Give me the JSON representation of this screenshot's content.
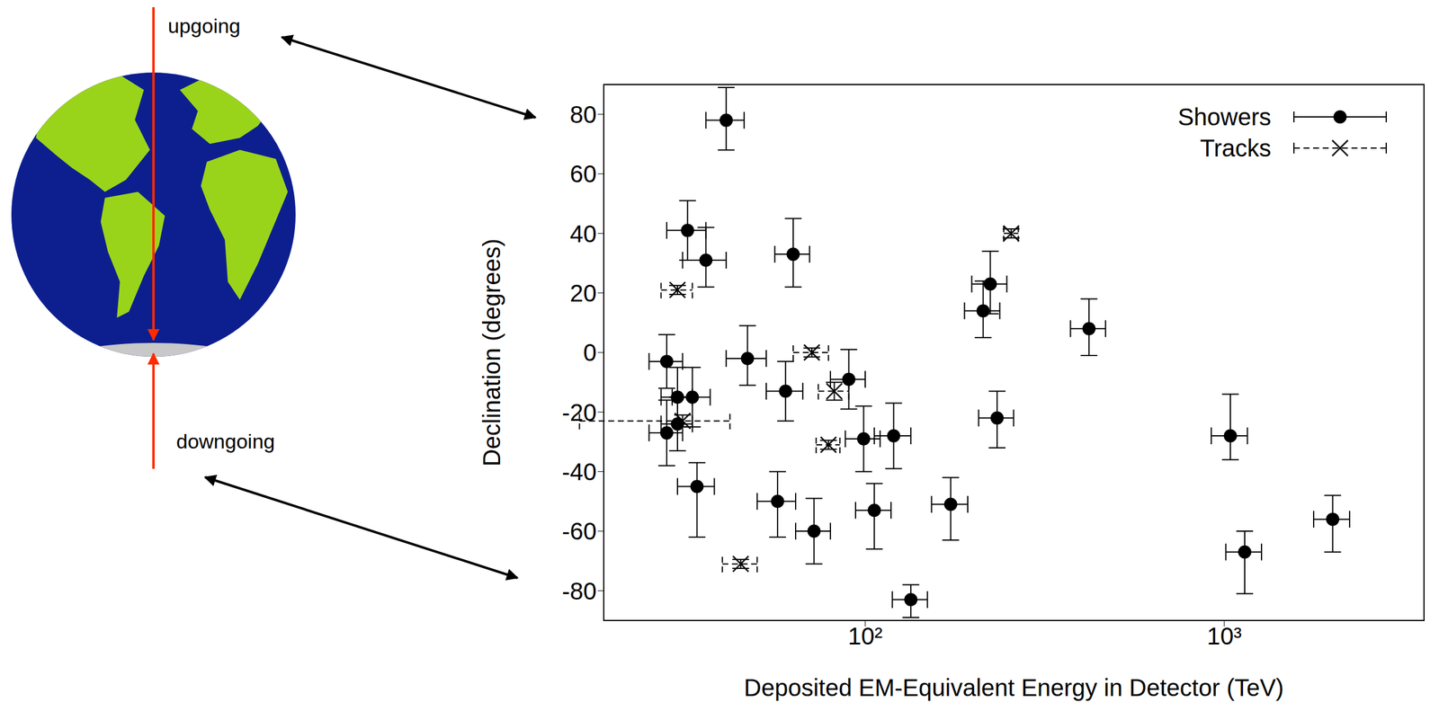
{
  "chart_data": {
    "type": "scatter",
    "x_label": "Deposited EM-Equivalent Energy in Detector (TeV)",
    "y_label": "Declination (degrees)",
    "log": "x",
    "xlim": [
      18.7,
      3600
    ],
    "xticks": [
      {
        "value": 100,
        "label": "10²"
      },
      {
        "value": 1000,
        "label": "10³"
      }
    ],
    "ylim": [
      -90,
      90
    ],
    "yticks": [
      -80,
      -60,
      -40,
      -20,
      0,
      20,
      40,
      60,
      80
    ],
    "grid": false,
    "legend": "upper right",
    "series": [
      {
        "name": "Showers",
        "color": "#000000",
        "marker": "circle",
        "line_style": "solid",
        "x": [
          41,
          32,
          36,
          63,
          28,
          47,
          30,
          33,
          28,
          30,
          34,
          60,
          57,
          72,
          90,
          99,
          120,
          106,
          134,
          173,
          213,
          223,
          233,
          420,
          1040,
          1140,
          2004
        ],
        "values": [
          78,
          41,
          31,
          33,
          -3,
          -2,
          -15,
          -15,
          -27,
          -24,
          -45,
          -13,
          -50,
          -60,
          -9,
          -29,
          -28,
          -53,
          -83,
          -51,
          14,
          23,
          -22,
          8,
          -28,
          -67,
          -56
        ],
        "x_error": [
          [
            5,
            5
          ],
          [
            4,
            4
          ],
          [
            5,
            5
          ],
          [
            7,
            7
          ],
          [
            3,
            3
          ],
          [
            6,
            6
          ],
          [
            3,
            3
          ],
          [
            4,
            4
          ],
          [
            3,
            3
          ],
          [
            3,
            3
          ],
          [
            4,
            4
          ],
          [
            7,
            7
          ],
          [
            7,
            7
          ],
          [
            8,
            8
          ],
          [
            10,
            10
          ],
          [
            11,
            11
          ],
          [
            14,
            14
          ],
          [
            12,
            12
          ],
          [
            15,
            15
          ],
          [
            20,
            20
          ],
          [
            24,
            24
          ],
          [
            25,
            25
          ],
          [
            26,
            26
          ],
          [
            47,
            47
          ],
          [
            120,
            120
          ],
          [
            130,
            130
          ],
          [
            230,
            230
          ]
        ],
        "y_error": [
          [
            10,
            11
          ],
          [
            10,
            10
          ],
          [
            9,
            11
          ],
          [
            11,
            12
          ],
          [
            9,
            9
          ],
          [
            9,
            11
          ],
          [
            9,
            10
          ],
          [
            10,
            10
          ],
          [
            11,
            11
          ],
          [
            9,
            9
          ],
          [
            17,
            8
          ],
          [
            10,
            10
          ],
          [
            12,
            10
          ],
          [
            11,
            11
          ],
          [
            10,
            10
          ],
          [
            11,
            11
          ],
          [
            11,
            11
          ],
          [
            13,
            9
          ],
          [
            6,
            5
          ],
          [
            12,
            9
          ],
          [
            9,
            10
          ],
          [
            10,
            11
          ],
          [
            10,
            9
          ],
          [
            9,
            10
          ],
          [
            8,
            14
          ],
          [
            14,
            7
          ],
          [
            11,
            8
          ]
        ]
      },
      {
        "name": "Tracks",
        "color": "#000000",
        "marker": "x",
        "line_style": "dashed",
        "x": [
          30,
          71,
          255,
          82,
          79,
          45,
          31
        ],
        "values": [
          21,
          0,
          40,
          -13,
          -31,
          -71,
          -23
        ],
        "x_error": [
          [
            3,
            3
          ],
          [
            8,
            8
          ],
          [
            12,
            12
          ],
          [
            8,
            8
          ],
          [
            6,
            6
          ],
          [
            5,
            5
          ],
          [
            15,
            11
          ]
        ],
        "y_error": [
          [
            1.5,
            1.5
          ],
          [
            1.5,
            1.5
          ],
          [
            1.5,
            1.5
          ],
          [
            3,
            3
          ],
          [
            1.5,
            1.5
          ],
          [
            1.5,
            1.5
          ],
          [
            2,
            2
          ]
        ]
      }
    ]
  },
  "diagram": {
    "top_label": "upgoing",
    "bottom_label": "downgoing"
  }
}
